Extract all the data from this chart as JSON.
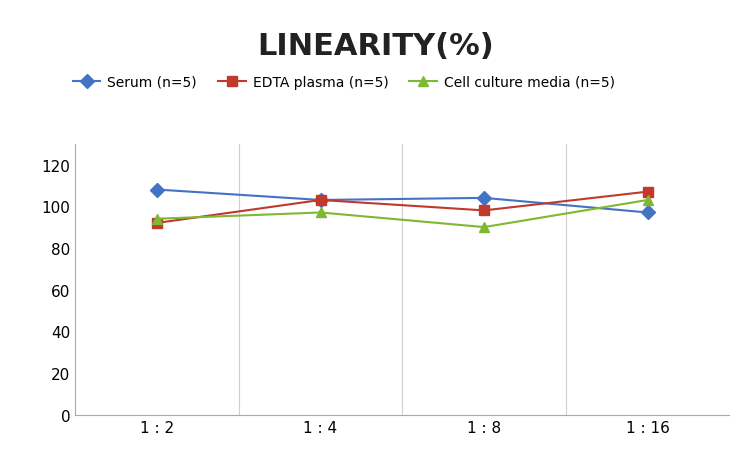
{
  "title": "LINEARITY(%)",
  "title_fontsize": 22,
  "title_fontweight": "bold",
  "x_labels": [
    "1 : 2",
    "1 : 4",
    "1 : 8",
    "1 : 16"
  ],
  "x_positions": [
    0,
    1,
    2,
    3
  ],
  "series": [
    {
      "label": "Serum (n=5)",
      "values": [
        108,
        103,
        104,
        97
      ],
      "color": "#4472C4",
      "marker": "D",
      "linewidth": 1.5
    },
    {
      "label": "EDTA plasma (n=5)",
      "values": [
        92,
        103,
        98,
        107
      ],
      "color": "#C0392B",
      "marker": "s",
      "linewidth": 1.5
    },
    {
      "label": "Cell culture media (n=5)",
      "values": [
        94,
        97,
        90,
        103
      ],
      "color": "#7FB832",
      "marker": "^",
      "linewidth": 1.5
    }
  ],
  "ylim": [
    0,
    130
  ],
  "yticks": [
    0,
    20,
    40,
    60,
    80,
    100,
    120
  ],
  "grid_color": "#D0D0D0",
  "grid_linewidth": 0.8,
  "background_color": "#FFFFFF",
  "legend_fontsize": 10,
  "tick_fontsize": 11,
  "spine_color": "#AAAAAA"
}
